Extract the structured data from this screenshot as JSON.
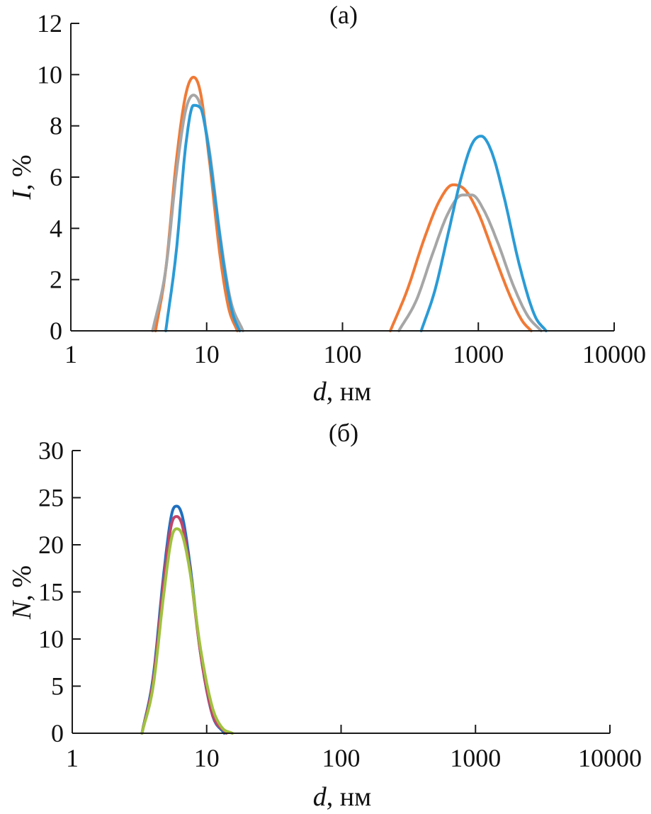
{
  "chart_data": [
    {
      "type": "line",
      "panel_label": "(a)",
      "xlabel_var": "d",
      "xlabel_unit": ", нм",
      "ylabel_var": "I",
      "ylabel_unit": ", %",
      "x_scale": "log",
      "xlim": [
        1,
        10000
      ],
      "ylim": [
        0,
        12
      ],
      "x_ticks": [
        1,
        10,
        100,
        1000,
        10000
      ],
      "x_tick_labels": [
        "1",
        "10",
        "100",
        "1000",
        "10000"
      ],
      "y_ticks": [
        0,
        2,
        4,
        6,
        8,
        10,
        12
      ],
      "y_tick_labels": [
        "0",
        "2",
        "4",
        "6",
        "8",
        "10",
        "12"
      ],
      "grid": false,
      "series": [
        {
          "color": "#f07a36",
          "peaks": [
            {
              "lo": 4.2,
              "hi": 16.8,
              "x": [
                4.2,
                5.0,
                6.0,
                7.0,
                8.0,
                9.0,
                10.5,
                12.5,
                14.5,
                16.8
              ],
              "y": [
                0,
                2.4,
                6.7,
                9.2,
                9.9,
                9.3,
                6.6,
                3.0,
                0.9,
                0
              ]
            },
            {
              "lo": 225,
              "hi": 2450,
              "x": [
                225,
                300,
                400,
                520,
                650,
                800,
                1000,
                1300,
                1700,
                2100,
                2450
              ],
              "y": [
                0,
                1.6,
                3.6,
                5.1,
                5.7,
                5.5,
                4.6,
                3.0,
                1.4,
                0.4,
                0
              ]
            }
          ]
        },
        {
          "color": "#a6a6a6",
          "peaks": [
            {
              "lo": 4.0,
              "hi": 18.5,
              "x": [
                4.0,
                5.0,
                6.0,
                7.0,
                8.0,
                9.0,
                10.5,
                12.5,
                15.0,
                18.5
              ],
              "y": [
                0,
                2.4,
                6.2,
                8.6,
                9.2,
                8.8,
                7.0,
                3.8,
                1.2,
                0
              ]
            },
            {
              "lo": 260,
              "hi": 2900,
              "x": [
                260,
                350,
                460,
                600,
                760,
                900,
                1100,
                1400,
                1800,
                2300,
                2900
              ],
              "y": [
                0,
                1.2,
                3.0,
                4.6,
                5.3,
                5.3,
                4.7,
                3.4,
                1.8,
                0.6,
                0
              ]
            }
          ]
        },
        {
          "color": "#2a9bd6",
          "peaks": [
            {
              "lo": 5.0,
              "hi": 17.5,
              "x": [
                5.0,
                6.0,
                7.0,
                8.0,
                9.0,
                10.0,
                11.5,
                13.5,
                15.5,
                17.5
              ],
              "y": [
                0,
                3.2,
                7.2,
                8.8,
                8.7,
                7.6,
                5.2,
                2.4,
                0.7,
                0
              ]
            },
            {
              "lo": 380,
              "hi": 3150,
              "x": [
                380,
                480,
                600,
                750,
                900,
                1050,
                1250,
                1550,
                2000,
                2600,
                3150
              ],
              "y": [
                0,
                1.6,
                3.8,
                6.0,
                7.3,
                7.6,
                7.0,
                5.2,
                2.6,
                0.6,
                0
              ]
            }
          ]
        }
      ]
    },
    {
      "type": "line",
      "panel_label": "(б)",
      "xlabel_var": "d",
      "xlabel_unit": ", нм",
      "ylabel_var": "N",
      "ylabel_unit": ", %",
      "x_scale": "log",
      "xlim": [
        1,
        10000
      ],
      "ylim": [
        0,
        30
      ],
      "x_ticks": [
        1,
        10,
        100,
        1000,
        10000
      ],
      "x_tick_labels": [
        "1",
        "10",
        "100",
        "1000",
        "10000"
      ],
      "y_ticks": [
        0,
        5,
        10,
        15,
        20,
        25,
        30
      ],
      "y_tick_labels": [
        "0",
        "5",
        "10",
        "15",
        "20",
        "25",
        "30"
      ],
      "grid": false,
      "series": [
        {
          "color": "#1f6fbf",
          "peaks": [
            {
              "lo": 3.3,
              "hi": 13.5,
              "x": [
                3.3,
                4.0,
                4.8,
                5.5,
                6.0,
                6.6,
                7.5,
                9.0,
                11.0,
                13.5
              ],
              "y": [
                0,
                6.0,
                17.0,
                23.3,
                24.1,
                23.0,
                18.0,
                8.5,
                2.0,
                0
              ]
            }
          ]
        },
        {
          "color": "#c2456a",
          "peaks": [
            {
              "lo": 3.3,
              "hi": 14.0,
              "x": [
                3.3,
                4.0,
                4.8,
                5.5,
                6.0,
                6.6,
                7.5,
                9.0,
                11.0,
                14.0
              ],
              "y": [
                0,
                5.6,
                16.2,
                22.3,
                23.0,
                22.0,
                17.4,
                8.5,
                2.1,
                0
              ]
            }
          ]
        },
        {
          "color": "#9fc13e",
          "peaks": [
            {
              "lo": 3.3,
              "hi": 15.5,
              "x": [
                3.3,
                4.0,
                4.8,
                5.5,
                6.0,
                6.6,
                7.5,
                9.0,
                11.0,
                13.0,
                15.5
              ],
              "y": [
                0,
                5.0,
                14.8,
                20.8,
                21.7,
                21.0,
                17.2,
                9.0,
                2.8,
                0.6,
                0
              ]
            }
          ]
        }
      ]
    }
  ]
}
